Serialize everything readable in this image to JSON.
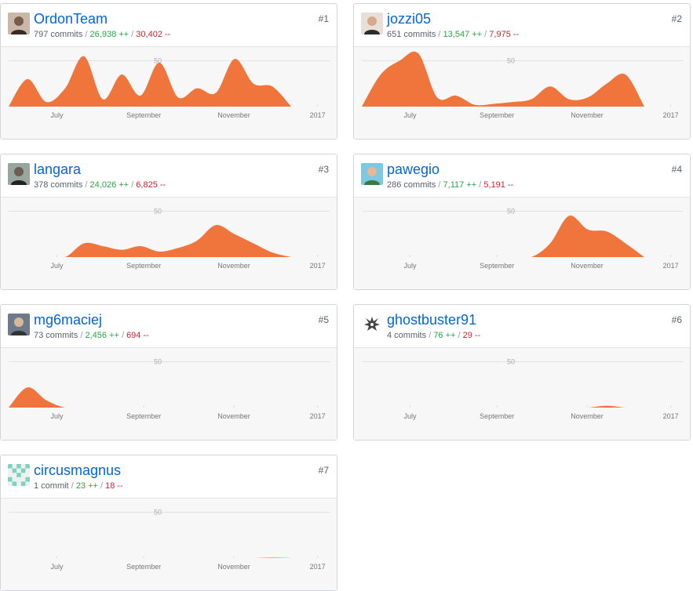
{
  "chart_meta": {
    "type": "area",
    "x_ticks": [
      "July",
      "September",
      "November",
      "2017"
    ],
    "y_tick": "50",
    "ylim": [
      0,
      65
    ],
    "fill_color": "#f0753c"
  },
  "contributors": [
    {
      "rank": "#1",
      "username": "OrdonTeam",
      "commits": "797 commits",
      "additions": "26,938 ++",
      "deletions": "30,402 --",
      "avatar": "person-avatar-icon",
      "chart_data": {
        "type": "area",
        "x": [
          0,
          2,
          4,
          6,
          8,
          10,
          12,
          14,
          16,
          18,
          20,
          22,
          24,
          26,
          28,
          30
        ],
        "values": [
          0,
          30,
          5,
          20,
          55,
          8,
          35,
          12,
          48,
          10,
          20,
          15,
          52,
          25,
          22,
          0
        ]
      }
    },
    {
      "rank": "#2",
      "username": "jozzi05",
      "commits": "651 commits",
      "additions": "13,547 ++",
      "deletions": "7,975 --",
      "avatar": "person-avatar-icon",
      "chart_data": {
        "type": "area",
        "x": [
          0,
          2,
          4,
          6,
          8,
          10,
          12,
          14,
          16,
          18,
          20,
          22,
          24,
          26,
          28,
          30
        ],
        "values": [
          0,
          35,
          50,
          58,
          10,
          12,
          2,
          3,
          5,
          8,
          22,
          8,
          10,
          25,
          35,
          0
        ]
      }
    },
    {
      "rank": "#3",
      "username": "langara",
      "commits": "378 commits",
      "additions": "24,026 ++",
      "deletions": "6,825 --",
      "avatar": "person-avatar-icon",
      "chart_data": {
        "type": "area",
        "x": [
          0,
          2,
          4,
          6,
          8,
          10,
          12,
          14,
          16,
          18,
          20,
          22,
          24,
          26,
          28,
          30
        ],
        "values": [
          0,
          0,
          0,
          0,
          15,
          12,
          8,
          12,
          6,
          10,
          18,
          35,
          25,
          15,
          5,
          0
        ]
      }
    },
    {
      "rank": "#4",
      "username": "pawegio",
      "commits": "286 commits",
      "additions": "7,117 ++",
      "deletions": "5,191 --",
      "avatar": "person-avatar-icon",
      "chart_data": {
        "type": "area",
        "x": [
          0,
          2,
          4,
          6,
          8,
          10,
          12,
          14,
          16,
          18,
          20,
          22,
          24,
          26,
          28,
          30
        ],
        "values": [
          0,
          0,
          0,
          0,
          0,
          0,
          0,
          0,
          0,
          0,
          15,
          45,
          30,
          28,
          15,
          0
        ]
      }
    },
    {
      "rank": "#5",
      "username": "mg6maciej",
      "commits": "73 commits",
      "additions": "2,456 ++",
      "deletions": "694 --",
      "avatar": "person-avatar-icon",
      "chart_data": {
        "type": "area",
        "x": [
          0,
          2,
          4,
          6,
          8,
          10,
          12,
          14,
          16,
          18,
          20,
          22,
          24,
          26,
          28,
          30
        ],
        "values": [
          0,
          22,
          8,
          0,
          0,
          0,
          0,
          0,
          0,
          0,
          0,
          0,
          0,
          0,
          0,
          0
        ]
      }
    },
    {
      "rank": "#6",
      "username": "ghostbuster91",
      "commits": "4 commits",
      "additions": "76 ++",
      "deletions": "29 --",
      "avatar": "dragon-avatar-icon",
      "chart_data": {
        "type": "area",
        "x": [
          0,
          2,
          4,
          6,
          8,
          10,
          12,
          14,
          16,
          18,
          20,
          22,
          24,
          26,
          28,
          30
        ],
        "values": [
          0,
          0,
          0,
          0,
          0,
          0,
          0,
          0,
          0,
          0,
          0,
          0,
          0,
          2,
          0,
          0
        ]
      }
    },
    {
      "rank": "#7",
      "username": "circusmagnus",
      "commits": "1 commit",
      "additions": "23 ++",
      "deletions": "18 --",
      "avatar": "identicon-avatar-icon",
      "chart_data": {
        "type": "area",
        "x": [
          0,
          2,
          4,
          6,
          8,
          10,
          12,
          14,
          16,
          18,
          20,
          22,
          24,
          26,
          28,
          30
        ],
        "values": [
          0,
          0,
          0,
          0,
          0,
          0,
          0,
          0,
          0,
          0,
          0,
          0,
          0,
          0,
          0.5,
          0
        ]
      }
    }
  ]
}
